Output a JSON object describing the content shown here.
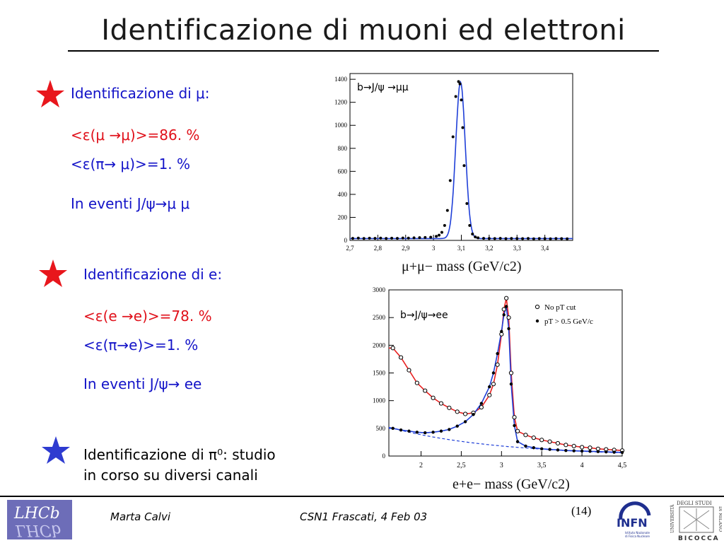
{
  "title": "Identificazione di muoni ed elettroni",
  "sections": {
    "muon": {
      "heading": "Identificazione di μ:",
      "eff1": "<ε(μ →μ)>=86. %",
      "eff2": "<ε(π→ μ)>=1. %",
      "events": "In eventi J/ψ→μ μ"
    },
    "electron": {
      "heading": "Identificazione di e:",
      "eff1": "<ε(e →e)>=78. %",
      "eff2": "<ε(π→e)>=1. %",
      "events": "In eventi J/ψ→ ee"
    },
    "pion": {
      "heading_line1": "Identificazione di π⁰: studio",
      "heading_line2": "in corso su diversi canali"
    }
  },
  "colors": {
    "star_red": "#e8161c",
    "star_blue": "#2e3bd0",
    "text_blue": "#1313c8",
    "text_red": "#e0101a",
    "fit_blue": "#1f3fd8",
    "fit_red": "#e82020"
  },
  "footer": {
    "author": "Marta Calvi",
    "event": "CSN1 Frascati, 4 Feb 03",
    "page": "(14)"
  },
  "logos": {
    "lhcb": "LHCb",
    "infn": "INFN",
    "infn_sub": "Istituto Nazionale di Fisica Nucleare",
    "bicocca_top": "DEGLI STUDI",
    "bicocca_side": "UNIVERSITÀ",
    "bicocca_side2": "DI MILANO",
    "bicocca_bottom": "BICOCCA"
  },
  "chart_data": [
    {
      "type": "scatter",
      "title": "b→J/ψ →μμ",
      "xlabel": "μ+μ− mass  (GeV/c2)",
      "ylabel": "",
      "xlim": [
        2.7,
        3.5
      ],
      "ylim": [
        0,
        1450
      ],
      "xticks": [
        "2,7",
        "2,8",
        "2,9",
        "3",
        "3,1",
        "3,2",
        "3,3",
        "3,4"
      ],
      "yticks": [
        "0",
        "200",
        "400",
        "600",
        "800",
        "1000",
        "1200",
        "1400"
      ],
      "series": [
        {
          "x": [
            2.71,
            2.73,
            2.75,
            2.77,
            2.79,
            2.81,
            2.83,
            2.85,
            2.87,
            2.89,
            2.91,
            2.93,
            2.95,
            2.97,
            2.99,
            3.01,
            3.02,
            3.03,
            3.04,
            3.05,
            3.06,
            3.07,
            3.08,
            3.09,
            3.095,
            3.1,
            3.105,
            3.11,
            3.12,
            3.13,
            3.14,
            3.15,
            3.16,
            3.18,
            3.2,
            3.22,
            3.24,
            3.26,
            3.28,
            3.3,
            3.32,
            3.34,
            3.36,
            3.38,
            3.4,
            3.42,
            3.44,
            3.46,
            3.48
          ],
          "values": [
            18,
            20,
            17,
            19,
            18,
            20,
            17,
            19,
            18,
            21,
            20,
            22,
            24,
            25,
            28,
            35,
            45,
            70,
            130,
            260,
            520,
            900,
            1250,
            1380,
            1360,
            1220,
            980,
            650,
            320,
            130,
            55,
            30,
            22,
            18,
            17,
            16,
            18,
            15,
            17,
            16,
            15,
            17,
            14,
            16,
            15,
            14,
            16,
            15,
            14
          ]
        }
      ],
      "fit_series": "fit"
    },
    {
      "type": "scatter",
      "title": "b→J/ψ→ee",
      "xlabel": "e+e− mass  (GeV/c2)",
      "ylabel": "",
      "xlim": [
        1.6,
        4.5
      ],
      "ylim": [
        0,
        3000
      ],
      "xticks": [
        "2",
        "2,5",
        "3",
        "3,5",
        "4",
        "4,5"
      ],
      "yticks": [
        "0",
        "500",
        "1000",
        "1500",
        "2000",
        "2500",
        "3000"
      ],
      "legend": [
        "No pT cut",
        "pT > 0.5 GeV/c"
      ],
      "legend_position": "top-right",
      "series": [
        {
          "name": "No pT cut",
          "x": [
            1.65,
            1.75,
            1.85,
            1.95,
            2.05,
            2.15,
            2.25,
            2.35,
            2.45,
            2.55,
            2.65,
            2.75,
            2.85,
            2.9,
            2.95,
            3.0,
            3.03,
            3.06,
            3.09,
            3.12,
            3.16,
            3.2,
            3.3,
            3.4,
            3.5,
            3.6,
            3.7,
            3.8,
            3.9,
            4.0,
            4.1,
            4.2,
            4.3,
            4.4,
            4.5
          ],
          "values": [
            1950,
            1780,
            1550,
            1320,
            1180,
            1050,
            950,
            870,
            800,
            760,
            780,
            880,
            1100,
            1300,
            1650,
            2200,
            2650,
            2850,
            2500,
            1500,
            700,
            450,
            380,
            330,
            290,
            260,
            230,
            200,
            180,
            160,
            150,
            130,
            120,
            110,
            100
          ]
        },
        {
          "name": "pT > 0.5 GeV/c",
          "x": [
            1.65,
            1.75,
            1.85,
            1.95,
            2.05,
            2.15,
            2.25,
            2.35,
            2.45,
            2.55,
            2.65,
            2.75,
            2.85,
            2.9,
            2.95,
            3.0,
            3.03,
            3.06,
            3.09,
            3.12,
            3.16,
            3.2,
            3.3,
            3.4,
            3.5,
            3.6,
            3.7,
            3.8,
            3.9,
            4.0,
            4.1,
            4.2,
            4.3,
            4.4,
            4.5
          ],
          "values": [
            500,
            470,
            450,
            430,
            420,
            430,
            450,
            480,
            540,
            620,
            750,
            950,
            1250,
            1500,
            1850,
            2250,
            2550,
            2700,
            2300,
            1300,
            550,
            260,
            180,
            150,
            130,
            120,
            110,
            100,
            95,
            90,
            85,
            80,
            75,
            70,
            65
          ]
        }
      ]
    }
  ]
}
